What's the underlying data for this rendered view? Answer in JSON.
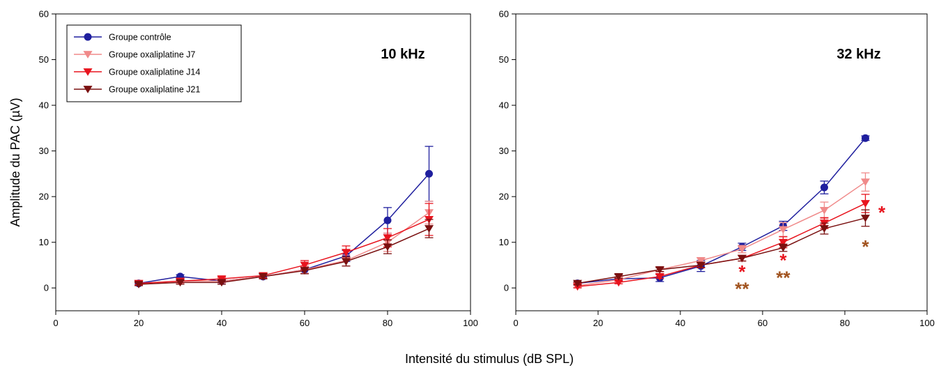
{
  "chart_data": {
    "type": "line",
    "xlabel": "Intensité du stimulus (dB SPL)",
    "ylabel": "Amplitude du PAC (µV)",
    "xlim": [
      0,
      100
    ],
    "ylim": [
      -5,
      60
    ],
    "xticks": [
      "0",
      "20",
      "40",
      "60",
      "80",
      "100"
    ],
    "yticks": [
      "0",
      "10",
      "20",
      "30",
      "40",
      "50",
      "60"
    ],
    "legend": {
      "placement": "top-left",
      "entries": [
        {
          "name": "Groupe contrôle",
          "color": "#1f1f9e",
          "marker": "circle"
        },
        {
          "name": "Groupe oxaliplatine J7",
          "color": "#f08a8a",
          "marker": "triangle-down"
        },
        {
          "name": "Groupe oxaliplatine J14",
          "color": "#e8141e",
          "marker": "triangle-down"
        },
        {
          "name": "Groupe oxaliplatine J21",
          "color": "#7a1010",
          "marker": "triangle-down"
        }
      ]
    },
    "panels": [
      {
        "label": "10 kHz",
        "series": [
          {
            "name": "Groupe contrôle",
            "color": "#1f1f9e",
            "marker": "circle",
            "x": [
              20,
              30,
              40,
              50,
              60,
              70,
              80,
              90
            ],
            "y": [
              1,
              2.5,
              1.5,
              2.5,
              4,
              7,
              14.8,
              25
            ],
            "err": [
              0.3,
              0.4,
              0.4,
              0.5,
              0.8,
              1.2,
              2.8,
              6
            ]
          },
          {
            "name": "Groupe oxaliplatine J7",
            "color": "#f08a8a",
            "marker": "triangle-down",
            "x": [
              20,
              30,
              40,
              50,
              60,
              70,
              80,
              90
            ],
            "y": [
              1,
              1.5,
              1.5,
              2.5,
              4,
              6,
              10,
              16.5
            ],
            "err": [
              0.3,
              0.4,
              0.4,
              0.5,
              0.8,
              1.2,
              2,
              2.5
            ]
          },
          {
            "name": "Groupe oxaliplatine J14",
            "color": "#e8141e",
            "marker": "triangle-down",
            "x": [
              20,
              30,
              40,
              50,
              60,
              70,
              80,
              90
            ],
            "y": [
              1,
              1.5,
              2,
              2.7,
              5,
              7.8,
              11,
              15
            ],
            "err": [
              0.3,
              0.4,
              0.4,
              0.5,
              1,
              1.4,
              2,
              3.5
            ]
          },
          {
            "name": "Groupe oxaliplatine J21",
            "color": "#7a1010",
            "marker": "triangle-down",
            "x": [
              20,
              30,
              40,
              50,
              60,
              70,
              80,
              90
            ],
            "y": [
              0.8,
              1.2,
              1.2,
              2.5,
              3.8,
              5.8,
              9,
              13
            ],
            "err": [
              0.3,
              0.4,
              0.4,
              0.5,
              0.7,
              1,
              1.5,
              2
            ]
          }
        ],
        "annotations": []
      },
      {
        "label": "32 kHz",
        "series": [
          {
            "name": "Groupe contrôle",
            "color": "#1f1f9e",
            "marker": "circle",
            "x": [
              15,
              25,
              35,
              45,
              55,
              65,
              75,
              85
            ],
            "y": [
              1,
              2,
              2.2,
              4.8,
              9,
              13.6,
              22,
              32.8
            ],
            "err": [
              0.3,
              0.4,
              0.8,
              1.2,
              0.8,
              1,
              1.4,
              0.5
            ]
          },
          {
            "name": "Groupe oxaliplatine J7",
            "color": "#f08a8a",
            "marker": "triangle-down",
            "x": [
              15,
              25,
              35,
              45,
              55,
              65,
              75,
              85
            ],
            "y": [
              0.5,
              1.8,
              4,
              6,
              8.5,
              12.8,
              17,
              23.2
            ],
            "err": [
              0.3,
              0.4,
              0.5,
              0.6,
              0.8,
              1.5,
              1.8,
              2
            ]
          },
          {
            "name": "Groupe oxaliplatine J14",
            "color": "#e8141e",
            "marker": "triangle-down",
            "x": [
              15,
              25,
              35,
              45,
              55,
              65,
              75,
              85
            ],
            "y": [
              0.3,
              1.2,
              2.5,
              5,
              6.5,
              10,
              14.2,
              18.5
            ],
            "err": [
              0.3,
              0.3,
              0.4,
              0.6,
              0.6,
              1.2,
              1.2,
              2
            ]
          },
          {
            "name": "Groupe oxaliplatine J21",
            "color": "#7a1010",
            "marker": "triangle-down",
            "x": [
              15,
              25,
              35,
              45,
              55,
              65,
              75,
              85
            ],
            "y": [
              1,
              2.5,
              4,
              5,
              6.5,
              8.8,
              13,
              15.3
            ],
            "err": [
              0.3,
              0.4,
              0.4,
              0.5,
              0.6,
              0.8,
              1.2,
              1.8
            ]
          }
        ],
        "annotations": [
          {
            "text": "*",
            "x": 55,
            "y": 4,
            "color": "#e8141e"
          },
          {
            "text": "**",
            "x": 55,
            "y": 0.3,
            "color": "#a0521e"
          },
          {
            "text": "*",
            "x": 65,
            "y": 6.5,
            "color": "#e8141e"
          },
          {
            "text": "**",
            "x": 65,
            "y": 2.7,
            "color": "#a0521e"
          },
          {
            "text": "*",
            "x": 89,
            "y": 17,
            "color": "#e8141e"
          },
          {
            "text": "*",
            "x": 85,
            "y": 9.5,
            "color": "#a0521e"
          }
        ]
      }
    ]
  }
}
